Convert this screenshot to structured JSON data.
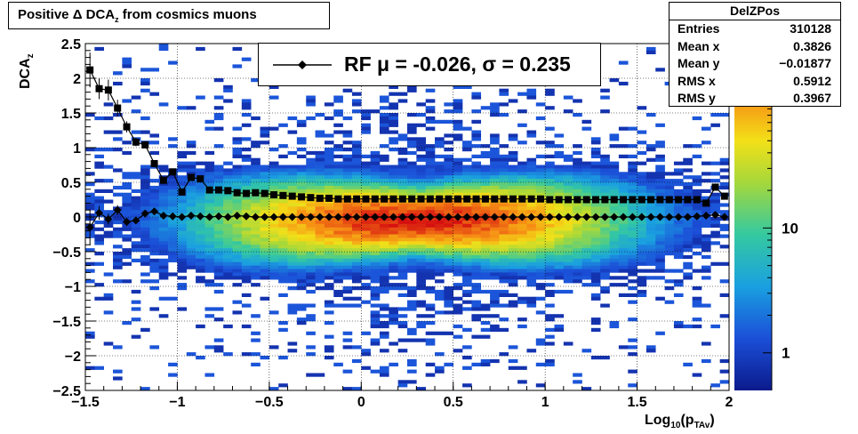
{
  "title_prefix": "Positive Δ DCA",
  "title_sub": "z",
  "title_suffix": " from cosmics muons",
  "stats": {
    "name": "DelZPos",
    "rows": [
      {
        "label": "Entries",
        "value": "310128"
      },
      {
        "label": "Mean x",
        "value": "0.3826"
      },
      {
        "label": "Mean y",
        "value": "−0.01877"
      },
      {
        "label": "RMS x",
        "value": "0.5912"
      },
      {
        "label": "RMS y",
        "value": "0.3967"
      }
    ]
  },
  "legend": {
    "label": "RF μ = -0.026, σ =   0.235",
    "marker_color": "#000000"
  },
  "axes": {
    "ylabel_main": "DCA",
    "ylabel_sub": "z",
    "xlabel_main": "Log",
    "xlabel_sub1": "10",
    "xlabel_mid": "(p",
    "xlabel_sub2": "TAv",
    "xlabel_end": ")"
  },
  "colorbar": {
    "ticks": [
      {
        "label": "10",
        "value": 10
      },
      {
        "label": "1",
        "value": 1
      }
    ],
    "log_scale": true,
    "zmax": 30
  },
  "chart_data": {
    "type": "heatmap",
    "xlim": [
      -1.5,
      2.0
    ],
    "ylim": [
      -2.5,
      2.5
    ],
    "grid": true,
    "x_ticks": [
      "−1.5",
      "−1",
      "−0.5",
      "0",
      "0.5",
      "1",
      "1.5",
      "2"
    ],
    "x_tick_values": [
      -1.5,
      -1,
      -0.5,
      0,
      0.5,
      1,
      1.5,
      2
    ],
    "y_ticks": [
      "2.5",
      "2",
      "1.5",
      "1",
      "0.5",
      "0",
      "−0.5",
      "−1",
      "−1.5",
      "−2",
      "−2.5"
    ],
    "y_tick_values": [
      2.5,
      2,
      1.5,
      1,
      0.5,
      0,
      -0.5,
      -1,
      -1.5,
      -2,
      -2.5
    ],
    "density_description_peak": {
      "x": 0.3,
      "y": -0.05
    },
    "series": [
      {
        "name": "RF",
        "marker": "diamond",
        "x": [
          -1.475,
          -1.425,
          -1.375,
          -1.325,
          -1.275,
          -1.225,
          -1.175,
          -1.125,
          -1.075,
          -1.025,
          -0.975,
          -0.925,
          -0.875,
          -0.825,
          -0.775,
          -0.725,
          -0.675,
          -0.625,
          -0.575,
          -0.525,
          -0.475,
          -0.425,
          -0.375,
          -0.325,
          -0.275,
          -0.225,
          -0.175,
          -0.125,
          -0.075,
          -0.025,
          0.025,
          0.075,
          0.125,
          0.175,
          0.225,
          0.275,
          0.325,
          0.375,
          0.425,
          0.475,
          0.525,
          0.575,
          0.625,
          0.675,
          0.725,
          0.775,
          0.825,
          0.875,
          0.925,
          0.975,
          1.025,
          1.075,
          1.125,
          1.175,
          1.225,
          1.275,
          1.325,
          1.375,
          1.425,
          1.475,
          1.525,
          1.575,
          1.625,
          1.675,
          1.725,
          1.775,
          1.825,
          1.875,
          1.925,
          1.975
        ],
        "values": [
          -0.15,
          0.06,
          -0.03,
          0.1,
          -0.07,
          -0.05,
          0.05,
          0.08,
          0.02,
          0.01,
          0.0,
          0.02,
          0.01,
          0.0,
          0.01,
          0.0,
          0.02,
          0.01,
          0.0,
          0.0,
          0.0,
          0.0,
          0.0,
          0.0,
          0.0,
          0.0,
          0.0,
          0.0,
          0.0,
          0.0,
          0.0,
          0.0,
          0.0,
          0.0,
          0.0,
          0.0,
          0.0,
          0.0,
          0.0,
          0.0,
          0.0,
          0.0,
          0.0,
          0.0,
          0.0,
          0.0,
          0.0,
          0.0,
          0.0,
          0.0,
          0.0,
          0.0,
          0.0,
          0.0,
          0.0,
          0.0,
          0.0,
          0.0,
          0.0,
          0.0,
          0.0,
          0.0,
          0.0,
          0.0,
          0.0,
          0.0,
          0.01,
          0.02,
          0.03,
          0.0
        ],
        "errors": [
          0.25,
          0.1,
          0.08,
          0.07,
          0.06,
          0.05,
          0.04,
          0.03,
          0.03,
          0.02,
          0.02,
          0.02,
          0.02,
          0.01,
          0.01,
          0.01,
          0.01,
          0.01,
          0.01,
          0.01,
          0.01,
          0.01,
          0.01,
          0.01,
          0.01,
          0.01,
          0.01,
          0.01,
          0.01,
          0.01,
          0.01,
          0.01,
          0.01,
          0.01,
          0.01,
          0.01,
          0.01,
          0.01,
          0.01,
          0.01,
          0.01,
          0.01,
          0.01,
          0.01,
          0.01,
          0.01,
          0.01,
          0.01,
          0.01,
          0.01,
          0.01,
          0.01,
          0.01,
          0.01,
          0.01,
          0.01,
          0.01,
          0.01,
          0.01,
          0.01,
          0.01,
          0.01,
          0.01,
          0.01,
          0.01,
          0.01,
          0.01,
          0.01,
          0.02,
          0.02
        ]
      },
      {
        "name": "",
        "marker": "square",
        "x": [
          -1.475,
          -1.425,
          -1.375,
          -1.325,
          -1.275,
          -1.225,
          -1.175,
          -1.125,
          -1.075,
          -1.025,
          -0.975,
          -0.925,
          -0.875,
          -0.825,
          -0.775,
          -0.725,
          -0.675,
          -0.625,
          -0.575,
          -0.525,
          -0.475,
          -0.425,
          -0.375,
          -0.325,
          -0.275,
          -0.225,
          -0.175,
          -0.125,
          -0.075,
          -0.025,
          0.025,
          0.075,
          0.125,
          0.175,
          0.225,
          0.275,
          0.325,
          0.375,
          0.425,
          0.475,
          0.525,
          0.575,
          0.625,
          0.675,
          0.725,
          0.775,
          0.825,
          0.875,
          0.925,
          0.975,
          1.025,
          1.075,
          1.125,
          1.175,
          1.225,
          1.275,
          1.325,
          1.375,
          1.425,
          1.475,
          1.525,
          1.575,
          1.625,
          1.675,
          1.725,
          1.775,
          1.825,
          1.875,
          1.925,
          1.975
        ],
        "values": [
          2.12,
          1.85,
          1.83,
          1.57,
          1.3,
          1.08,
          1.04,
          0.77,
          0.53,
          0.65,
          0.36,
          0.57,
          0.55,
          0.39,
          0.39,
          0.38,
          0.35,
          0.34,
          0.35,
          0.34,
          0.32,
          0.31,
          0.3,
          0.29,
          0.28,
          0.27,
          0.27,
          0.26,
          0.26,
          0.26,
          0.26,
          0.26,
          0.26,
          0.26,
          0.26,
          0.26,
          0.26,
          0.26,
          0.26,
          0.26,
          0.26,
          0.26,
          0.26,
          0.26,
          0.26,
          0.26,
          0.26,
          0.26,
          0.26,
          0.26,
          0.25,
          0.25,
          0.25,
          0.25,
          0.25,
          0.25,
          0.25,
          0.25,
          0.25,
          0.25,
          0.25,
          0.25,
          0.25,
          0.25,
          0.25,
          0.25,
          0.25,
          0.2,
          0.43,
          0.3
        ],
        "errors": [
          0.25,
          0.15,
          0.15,
          0.12,
          0.08,
          0.06,
          0.05,
          0.04,
          0.03,
          0.03,
          0.02,
          0.02,
          0.02,
          0.01,
          0.01,
          0.01,
          0.01,
          0.01,
          0.01,
          0.01,
          0.01,
          0.01,
          0.01,
          0.01,
          0.01,
          0.01,
          0.01,
          0.01,
          0.01,
          0.01,
          0.01,
          0.01,
          0.01,
          0.01,
          0.01,
          0.01,
          0.01,
          0.01,
          0.01,
          0.01,
          0.01,
          0.01,
          0.01,
          0.01,
          0.01,
          0.01,
          0.01,
          0.01,
          0.01,
          0.01,
          0.01,
          0.01,
          0.01,
          0.01,
          0.01,
          0.01,
          0.01,
          0.01,
          0.01,
          0.01,
          0.01,
          0.01,
          0.01,
          0.01,
          0.01,
          0.01,
          0.01,
          0.02,
          0.03,
          0.03
        ]
      }
    ]
  }
}
